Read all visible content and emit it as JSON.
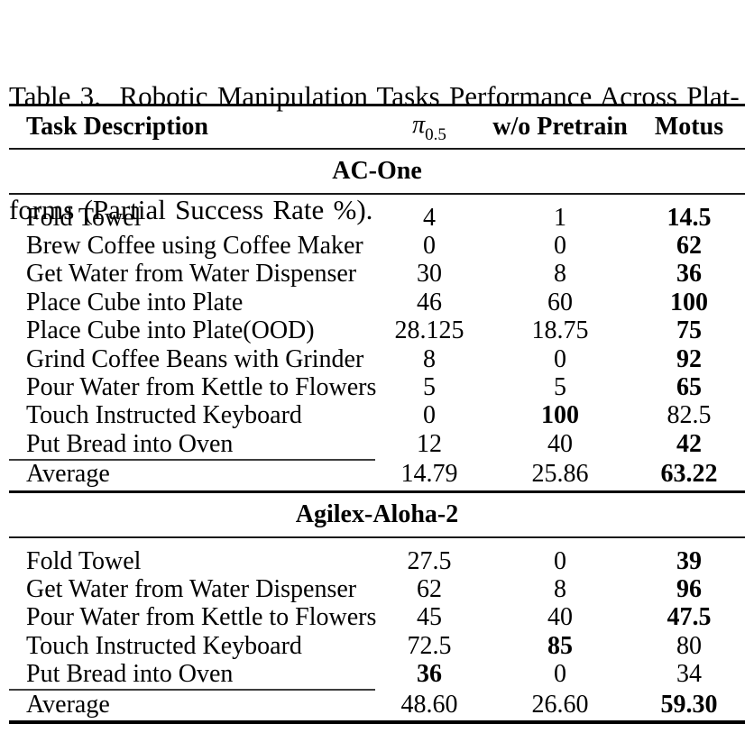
{
  "caption": {
    "line1": "Table 3.  Robotic Manipulation Tasks Performance Across Plat-",
    "line2": "forms (Partial Success Rate %)."
  },
  "header": {
    "task": "Task Description",
    "pi_symbol": "π",
    "pi_subscript": "0.5",
    "wo_pretrain": "w/o Pretrain",
    "motus": "Motus"
  },
  "sections": [
    {
      "name": "AC-One",
      "rows": [
        {
          "task": "Fold Towel",
          "values": [
            "4",
            "1",
            "14.5"
          ],
          "bold": [
            false,
            false,
            true
          ]
        },
        {
          "task": "Brew Coffee using Coffee Maker",
          "values": [
            "0",
            "0",
            "62"
          ],
          "bold": [
            false,
            false,
            true
          ]
        },
        {
          "task": "Get Water from Water Dispenser",
          "values": [
            "30",
            "8",
            "36"
          ],
          "bold": [
            false,
            false,
            true
          ]
        },
        {
          "task": "Place Cube into Plate",
          "values": [
            "46",
            "60",
            "100"
          ],
          "bold": [
            false,
            false,
            true
          ]
        },
        {
          "task": "Place Cube into Plate(OOD)",
          "values": [
            "28.125",
            "18.75",
            "75"
          ],
          "bold": [
            false,
            false,
            true
          ]
        },
        {
          "task": "Grind Coffee Beans with Grinder",
          "values": [
            "8",
            "0",
            "92"
          ],
          "bold": [
            false,
            false,
            true
          ]
        },
        {
          "task": "Pour Water from Kettle to Flowers",
          "values": [
            "5",
            "5",
            "65"
          ],
          "bold": [
            false,
            false,
            true
          ]
        },
        {
          "task": "Touch Instructed Keyboard",
          "values": [
            "0",
            "100",
            "82.5"
          ],
          "bold": [
            false,
            true,
            false
          ]
        },
        {
          "task": "Put Bread into Oven",
          "values": [
            "12",
            "40",
            "42"
          ],
          "bold": [
            false,
            false,
            true
          ]
        }
      ],
      "average": {
        "task": "Average",
        "values": [
          "14.79",
          "25.86",
          "63.22"
        ],
        "bold": [
          false,
          false,
          true
        ]
      }
    },
    {
      "name": "Agilex-Aloha-2",
      "rows": [
        {
          "task": "Fold Towel",
          "values": [
            "27.5",
            "0",
            "39"
          ],
          "bold": [
            false,
            false,
            true
          ]
        },
        {
          "task": "Get Water from Water Dispenser",
          "values": [
            "62",
            "8",
            "96"
          ],
          "bold": [
            false,
            false,
            true
          ]
        },
        {
          "task": "Pour Water from Kettle to Flowers",
          "values": [
            "45",
            "40",
            "47.5"
          ],
          "bold": [
            false,
            false,
            true
          ]
        },
        {
          "task": "Touch Instructed Keyboard",
          "values": [
            "72.5",
            "85",
            "80"
          ],
          "bold": [
            false,
            true,
            false
          ]
        },
        {
          "task": "Put Bread into Oven",
          "values": [
            "36",
            "0",
            "34"
          ],
          "bold": [
            true,
            false,
            false
          ]
        }
      ],
      "average": {
        "task": "Average",
        "values": [
          "48.60",
          "26.60",
          "59.30"
        ],
        "bold": [
          false,
          false,
          true
        ]
      }
    }
  ]
}
